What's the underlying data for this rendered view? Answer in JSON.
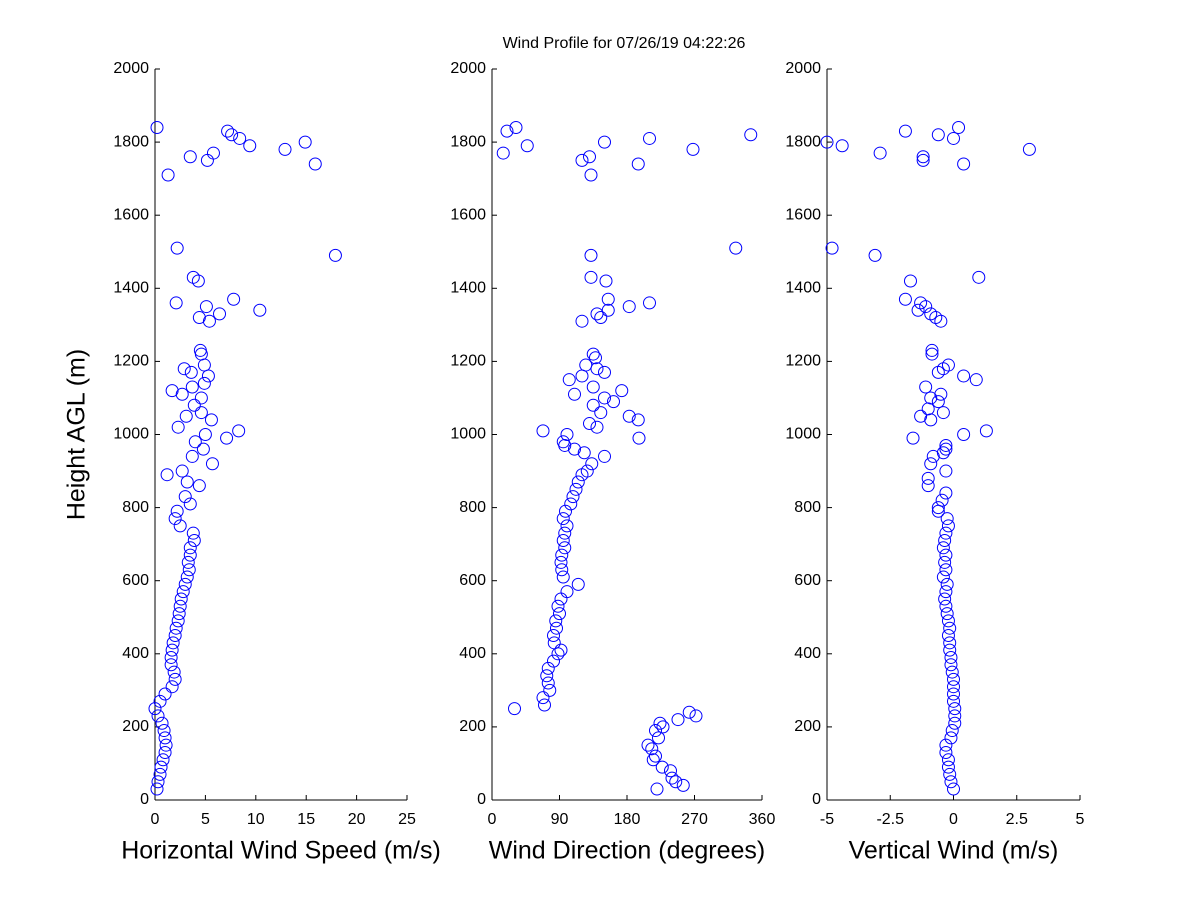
{
  "title": "Wind Profile for  07/26/19 04:22:26",
  "chart_data": [
    {
      "type": "scatter",
      "color": "#0000ff",
      "xlabel": "Horizontal Wind Speed (m/s)",
      "ylabel": "Height AGL (m)",
      "xlim": [
        0,
        25
      ],
      "xticks": [
        0,
        5,
        10,
        15,
        20,
        25
      ],
      "ylim": [
        0,
        2000
      ],
      "yticks": [
        0,
        200,
        400,
        600,
        800,
        1000,
        1200,
        1400,
        1600,
        1800,
        2000
      ],
      "x": [
        0.2,
        0.3,
        0.5,
        0.6,
        0.8,
        1.0,
        1.1,
        1.0,
        0.9,
        0.7,
        0.3,
        0.0,
        0.5,
        1.0,
        1.7,
        2.0,
        1.9,
        1.6,
        1.6,
        1.7,
        1.8,
        2.0,
        2.1,
        2.3,
        2.4,
        2.5,
        2.6,
        2.8,
        3.0,
        3.2,
        3.4,
        3.3,
        3.5,
        3.5,
        3.9,
        3.8,
        2.5,
        2.0,
        2.2,
        3.5,
        3.0,
        4.4,
        3.2,
        1.2,
        2.7,
        5.7,
        3.7,
        4.8,
        4.0,
        7.1,
        5.0,
        8.3,
        2.3,
        5.6,
        3.1,
        4.6,
        3.9,
        4.6,
        2.7,
        1.7,
        3.7,
        4.9,
        5.3,
        3.6,
        2.9,
        4.9,
        4.6,
        4.5,
        5.4,
        4.4,
        6.4,
        10.4,
        5.1,
        2.1,
        7.8,
        4.3,
        3.8,
        17.9,
        2.2,
        1.3,
        15.9,
        5.2,
        3.5,
        5.8,
        12.9,
        9.4,
        14.9,
        8.4,
        7.6,
        7.2,
        0.2
      ],
      "y": [
        30,
        50,
        70,
        90,
        110,
        130,
        150,
        170,
        190,
        210,
        230,
        250,
        270,
        290,
        310,
        330,
        350,
        370,
        390,
        410,
        430,
        450,
        470,
        490,
        510,
        530,
        550,
        570,
        590,
        610,
        630,
        650,
        670,
        690,
        710,
        730,
        750,
        770,
        790,
        810,
        830,
        860,
        870,
        890,
        900,
        920,
        940,
        960,
        980,
        990,
        1000,
        1010,
        1020,
        1040,
        1050,
        1060,
        1080,
        1100,
        1110,
        1120,
        1130,
        1140,
        1160,
        1170,
        1180,
        1190,
        1220,
        1230,
        1310,
        1320,
        1330,
        1340,
        1350,
        1360,
        1370,
        1420,
        1430,
        1490,
        1510,
        1710,
        1740,
        1750,
        1760,
        1770,
        1780,
        1790,
        1800,
        1810,
        1820,
        1830,
        1840
      ]
    },
    {
      "type": "scatter",
      "color": "#0000ff",
      "xlabel": "Wind Direction (degrees)",
      "xlim": [
        0,
        360
      ],
      "xticks": [
        0,
        90,
        180,
        270,
        360
      ],
      "ylim": [
        0,
        2000
      ],
      "yticks": [
        0,
        200,
        400,
        600,
        800,
        1000,
        1200,
        1400,
        1600,
        1800,
        2000
      ],
      "x": [
        220,
        255,
        245,
        240,
        238,
        227,
        215,
        218,
        213,
        208,
        222,
        218,
        228,
        224,
        248,
        272,
        263,
        30,
        70,
        68,
        77,
        75,
        73,
        75,
        82,
        88,
        92,
        83,
        82,
        86,
        85,
        90,
        88,
        92,
        100,
        115,
        95,
        93,
        92,
        93,
        97,
        95,
        97,
        100,
        95,
        98,
        105,
        108,
        112,
        115,
        120,
        127,
        133,
        150,
        123,
        110,
        97,
        95,
        196,
        100,
        68,
        140,
        130,
        195,
        183,
        145,
        135,
        162,
        150,
        110,
        173,
        135,
        103,
        120,
        150,
        140,
        125,
        138,
        135,
        120,
        145,
        140,
        155,
        183,
        210,
        155,
        152,
        132,
        132,
        325,
        132,
        195,
        120,
        130,
        15,
        268,
        47,
        150,
        210,
        345,
        20,
        32
      ],
      "y": [
        30,
        40,
        50,
        60,
        80,
        90,
        110,
        120,
        140,
        150,
        170,
        190,
        200,
        210,
        220,
        230,
        240,
        250,
        260,
        280,
        300,
        320,
        340,
        360,
        380,
        400,
        410,
        430,
        450,
        470,
        490,
        510,
        530,
        550,
        570,
        590,
        610,
        630,
        650,
        670,
        690,
        710,
        730,
        750,
        770,
        790,
        810,
        830,
        850,
        870,
        890,
        900,
        920,
        940,
        950,
        960,
        970,
        980,
        990,
        1000,
        1010,
        1020,
        1030,
        1040,
        1050,
        1060,
        1080,
        1090,
        1100,
        1110,
        1120,
        1130,
        1150,
        1160,
        1170,
        1180,
        1190,
        1210,
        1220,
        1310,
        1320,
        1330,
        1340,
        1350,
        1360,
        1370,
        1420,
        1430,
        1490,
        1510,
        1710,
        1740,
        1750,
        1760,
        1770,
        1780,
        1790,
        1800,
        1810,
        1820,
        1830,
        1840
      ]
    },
    {
      "type": "scatter",
      "color": "#0000ff",
      "xlabel": "Vertical Wind (m/s)",
      "xlim": [
        -5,
        5
      ],
      "xticks": [
        -5,
        -2.5,
        0,
        2.5,
        5
      ],
      "ylim": [
        0,
        2000
      ],
      "yticks": [
        0,
        200,
        400,
        600,
        800,
        1000,
        1200,
        1400,
        1600,
        1800,
        2000
      ],
      "x": [
        0.0,
        -0.1,
        -0.15,
        -0.2,
        -0.2,
        -0.3,
        -0.3,
        -0.1,
        -0.05,
        0.05,
        0.05,
        0.05,
        0.0,
        0.0,
        0.0,
        0.0,
        -0.05,
        -0.1,
        -0.1,
        -0.15,
        -0.15,
        -0.2,
        -0.15,
        -0.2,
        -0.25,
        -0.3,
        -0.35,
        -0.3,
        -0.25,
        -0.4,
        -0.3,
        -0.35,
        -0.3,
        -0.4,
        -0.35,
        -0.3,
        -0.2,
        -0.25,
        -0.6,
        -0.6,
        -0.45,
        -0.3,
        -1.0,
        -1.0,
        -0.3,
        -0.9,
        -0.8,
        -0.4,
        -0.3,
        -0.3,
        -1.6,
        0.4,
        1.3,
        -0.9,
        -1.3,
        -0.4,
        -1.0,
        -0.6,
        -0.9,
        -0.5,
        -1.1,
        0.9,
        0.4,
        -0.6,
        -0.4,
        -0.2,
        -0.85,
        -0.85,
        -0.5,
        -0.7,
        -0.9,
        -1.4,
        -1.1,
        -1.3,
        -1.9,
        -1.7,
        1.0,
        -3.1,
        -4.8,
        0.4,
        -1.2,
        -1.2,
        -2.9,
        3.0,
        -4.4,
        -5.0,
        0.0,
        -0.6,
        -1.9,
        0.2
      ],
      "y": [
        30,
        50,
        70,
        90,
        110,
        130,
        150,
        170,
        190,
        210,
        230,
        250,
        270,
        290,
        310,
        330,
        350,
        370,
        390,
        410,
        430,
        450,
        470,
        490,
        510,
        530,
        550,
        570,
        590,
        610,
        630,
        650,
        670,
        690,
        710,
        730,
        750,
        770,
        790,
        800,
        820,
        840,
        860,
        880,
        900,
        920,
        940,
        950,
        960,
        970,
        990,
        1000,
        1010,
        1040,
        1050,
        1060,
        1070,
        1090,
        1100,
        1110,
        1130,
        1150,
        1160,
        1170,
        1180,
        1190,
        1220,
        1230,
        1310,
        1320,
        1330,
        1340,
        1350,
        1360,
        1370,
        1420,
        1430,
        1490,
        1510,
        1740,
        1750,
        1760,
        1770,
        1780,
        1790,
        1800,
        1810,
        1820,
        1830,
        1840
      ]
    }
  ]
}
